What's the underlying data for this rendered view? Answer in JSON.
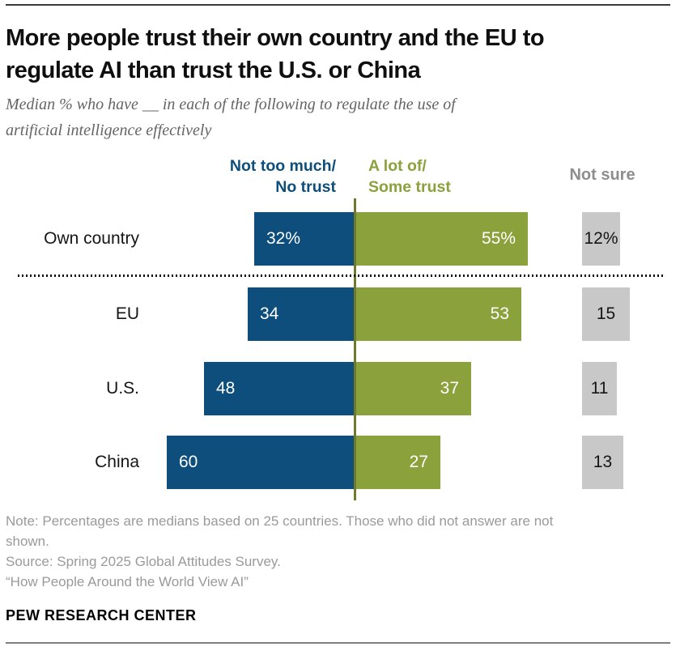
{
  "header": {
    "title_line1": "More people trust their own country and the EU to",
    "title_line2": "regulate AI than trust the U.S. or China",
    "subtitle_line1": "Median % who have __ in each of the following to regulate the use of",
    "subtitle_line2": "artificial intelligence effectively"
  },
  "legend": {
    "negative_line1": "Not too much/",
    "negative_line2": "No trust",
    "positive_line1": "A lot of/",
    "positive_line2": "Some trust",
    "not_sure": "Not sure"
  },
  "chart_data": {
    "type": "bar",
    "orientation": "horizontal",
    "variant": "diverging",
    "title": "More people trust their own country and the EU to regulate AI than trust the U.S. or China",
    "unit": "%",
    "categories": [
      "Own country",
      "EU",
      "U.S.",
      "China"
    ],
    "series": [
      {
        "name": "Not too much/No trust",
        "color": "#0d4e7d",
        "values": [
          32,
          34,
          48,
          60
        ]
      },
      {
        "name": "A lot of/Some trust",
        "color": "#8ba23c",
        "values": [
          55,
          53,
          37,
          27
        ]
      },
      {
        "name": "Not sure",
        "color": "#c8c8c8",
        "values": [
          12,
          15,
          11,
          13
        ]
      }
    ],
    "rows": [
      {
        "label": "Own country",
        "neg": 32,
        "pos": 55,
        "ns": 12,
        "neg_label": "32%",
        "pos_label": "55%",
        "ns_label": "12%"
      },
      {
        "label": "EU",
        "neg": 34,
        "pos": 53,
        "ns": 15,
        "neg_label": "34",
        "pos_label": "53",
        "ns_label": "15"
      },
      {
        "label": "U.S.",
        "neg": 48,
        "pos": 37,
        "ns": 11,
        "neg_label": "48",
        "pos_label": "37",
        "ns_label": "11"
      },
      {
        "label": "China",
        "neg": 60,
        "pos": 27,
        "ns": 13,
        "neg_label": "60",
        "pos_label": "27",
        "ns_label": "13"
      }
    ],
    "axis": {
      "type": "diverging-center-zero",
      "gridlines": false
    },
    "legend_position": "top",
    "note_separator": "dotted line between Own country and other rows"
  },
  "footer": {
    "note_line1": "Note: Percentages are medians based on 25 countries. Those who did not answer are not",
    "note_line2": "shown.",
    "source": "Source: Spring 2025 Global Attitudes Survey.",
    "report": "“How People Around the World View AI”",
    "brand": "PEW RESEARCH CENTER"
  },
  "colors": {
    "negative_bar": "#0d4e7d",
    "positive_bar": "#8ba23c",
    "not_sure_box": "#c8c8c8",
    "axis_line": "#6f7a2d",
    "title_text": "#0f0f0f",
    "subtitle_text": "#646464",
    "note_text": "#9a9a9a",
    "not_sure_label": "#8d8d8d",
    "top_rule": "#3a3a3a",
    "bottom_rule": "#7f7f7f"
  }
}
